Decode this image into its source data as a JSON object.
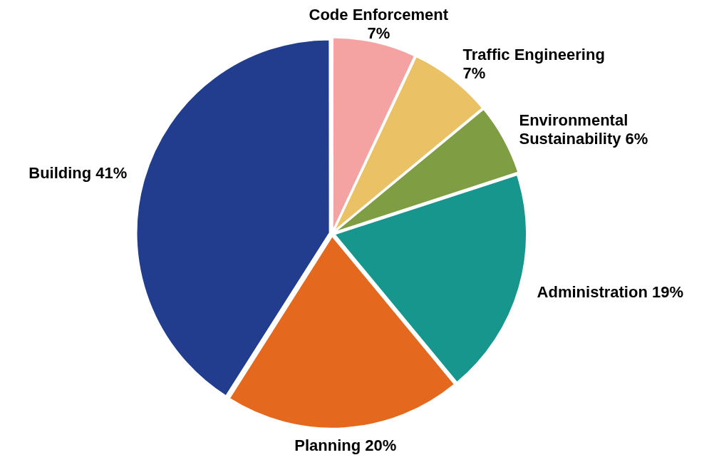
{
  "chart_data": {
    "type": "pie",
    "categories": [
      "Code Enforcement",
      "Traffic Engineering",
      "Environmental Sustainability",
      "Administration",
      "Planning",
      "Building"
    ],
    "values": [
      7,
      7,
      6,
      19,
      20,
      41
    ],
    "value_labels": [
      "7%",
      "7%",
      "6%",
      "19%",
      "20%",
      "41%"
    ],
    "colors": [
      "#f4a2a2",
      "#eac265",
      "#7f9d43",
      "#17968e",
      "#e4691e",
      "#223c8e"
    ],
    "legend": false
  }
}
